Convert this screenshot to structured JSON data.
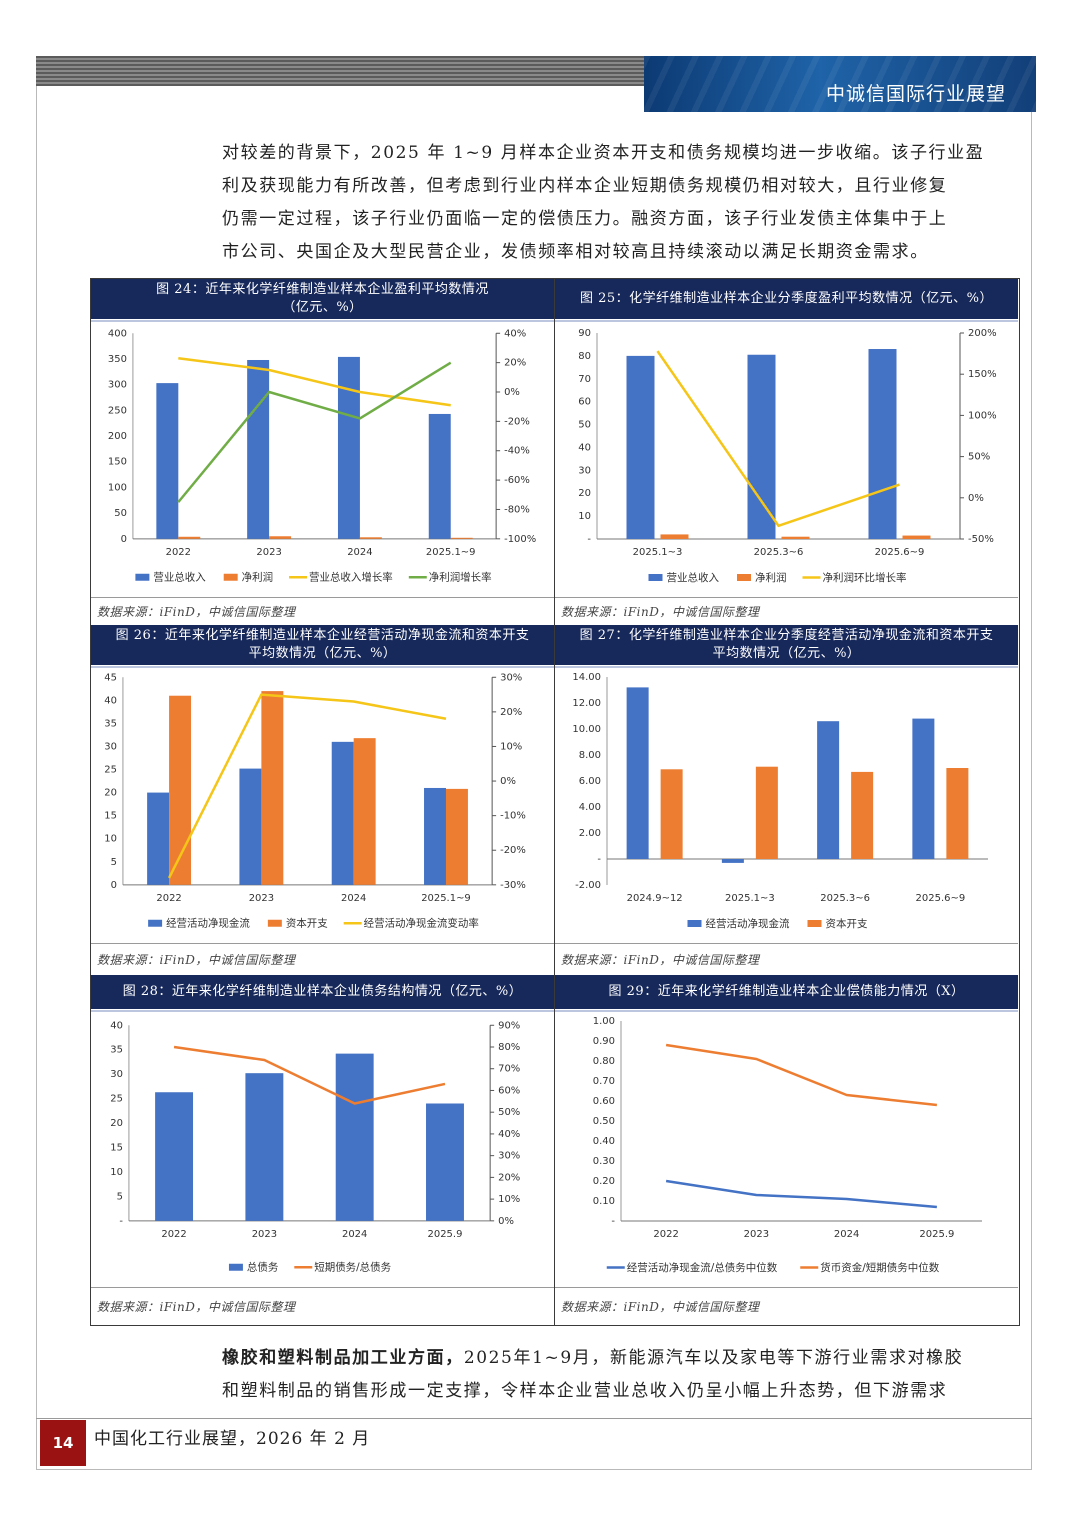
{
  "header": {
    "title": "中诚信国际行业展望"
  },
  "intro_lines": [
    "对较差的背景下，2025 年 1~9 月样本企业资本开支和债务规模均进一步收缩。该子行业盈",
    "利及获现能力有所改善，但考虑到行业内样本企业短期债务规模仍相对较大，且行业修复",
    "仍需一定过程，该子行业仍面临一定的偿债压力。融资方面，该子行业发债主体集中于上",
    "市公司、央国企及大型民营企业，发债频率相对较高且持续滚动以满足长期资金需求。"
  ],
  "outro": {
    "lead": "橡胶和塑料制品加工业方面，",
    "line1": "2025年1~9月，新能源汽车以及家电等下游行业需求对橡胶",
    "line2": "和塑料制品的销售形成一定支撑，令样本企业营业总收入仍呈小幅上升态势，但下游需求"
  },
  "footer": {
    "page_number": "14",
    "publication": "中国化工行业展望，2026 年 2 月"
  },
  "colors": {
    "blue": "#4472c4",
    "orange": "#ed7d31",
    "yellow": "#f5c518",
    "green": "#70ad47",
    "navy": "#17285b"
  },
  "chart_data": [
    {
      "id": "fig24",
      "type": "bar",
      "title": "图 24：近年来化学纤维制造业样本企业盈利平均数情况\n（亿元、%）",
      "source": "数据来源：iFinD，中诚信国际整理",
      "categories": [
        "2022",
        "2023",
        "2024",
        "2025.1~9"
      ],
      "left_axis": {
        "min": 0,
        "max": 400,
        "ticks": [
          "0",
          "50",
          "100",
          "150",
          "200",
          "250",
          "300",
          "350",
          "400"
        ]
      },
      "right_axis": {
        "min": -100,
        "max": 40,
        "ticks": [
          "-100%",
          "-80%",
          "-60%",
          "-40%",
          "-20%",
          "0%",
          "20%",
          "40%"
        ]
      },
      "series": [
        {
          "name": "营业总收入",
          "kind": "bar",
          "axis": "left",
          "color": "#4472c4",
          "values": [
            303,
            348,
            354,
            243
          ]
        },
        {
          "name": "净利润",
          "kind": "bar",
          "axis": "left",
          "color": "#ed7d31",
          "values": [
            4,
            5,
            3,
            2
          ]
        },
        {
          "name": "营业总收入增长率",
          "kind": "line",
          "axis": "right",
          "color": "#f5c518",
          "values": [
            23,
            15,
            0,
            -9
          ]
        },
        {
          "name": "净利润增长率",
          "kind": "line",
          "axis": "right",
          "color": "#70ad47",
          "values": [
            -75,
            0,
            -18,
            20
          ]
        }
      ]
    },
    {
      "id": "fig25",
      "type": "bar",
      "title": "图 25：化学纤维制造业样本企业分季度盈利平均数情况（亿元、%）",
      "source": "数据来源：iFinD，中诚信国际整理",
      "categories": [
        "2025.1~3",
        "2025.3~6",
        "2025.6~9"
      ],
      "left_axis": {
        "min": 0,
        "max": 90,
        "ticks": [
          "-",
          "10",
          "20",
          "30",
          "40",
          "50",
          "60",
          "70",
          "80",
          "90"
        ]
      },
      "right_axis": {
        "min": -50,
        "max": 200,
        "ticks": [
          "-50%",
          "0%",
          "50%",
          "100%",
          "150%",
          "200%"
        ]
      },
      "series": [
        {
          "name": "营业总收入",
          "kind": "bar",
          "axis": "left",
          "color": "#4472c4",
          "values": [
            80,
            80.5,
            83
          ]
        },
        {
          "name": "净利润",
          "kind": "bar",
          "axis": "left",
          "color": "#ed7d31",
          "values": [
            2,
            1,
            1.5
          ]
        },
        {
          "name": "净利润环比增长率",
          "kind": "line",
          "axis": "right",
          "color": "#f5c518",
          "values": [
            178,
            -34,
            16
          ]
        }
      ]
    },
    {
      "id": "fig26",
      "type": "bar",
      "title": "图 26：近年来化学纤维制造业样本企业经营活动净现金流和资本开支\n平均数情况（亿元、%）",
      "source": "数据来源：iFinD，中诚信国际整理",
      "categories": [
        "2022",
        "2023",
        "2024",
        "2025.1~9"
      ],
      "left_axis": {
        "min": 0,
        "max": 45,
        "ticks": [
          "0",
          "5",
          "10",
          "15",
          "20",
          "25",
          "30",
          "35",
          "40",
          "45"
        ]
      },
      "right_axis": {
        "min": -30,
        "max": 30,
        "ticks": [
          "-30%",
          "-20%",
          "-10%",
          "0%",
          "10%",
          "20%",
          "30%"
        ]
      },
      "series": [
        {
          "name": "经营活动净现金流",
          "kind": "bar",
          "axis": "left",
          "color": "#4472c4",
          "values": [
            20,
            25.2,
            31,
            21
          ]
        },
        {
          "name": "资本开支",
          "kind": "bar",
          "axis": "left",
          "color": "#ed7d31",
          "values": [
            41,
            42,
            31.8,
            20.8
          ]
        },
        {
          "name": "经营活动净现金流变动率",
          "kind": "line",
          "axis": "right",
          "color": "#f5c518",
          "values": [
            -28,
            25,
            23,
            18
          ]
        }
      ]
    },
    {
      "id": "fig27",
      "type": "bar",
      "title": "图 27：化学纤维制造业样本企业分季度经营活动净现金流和资本开支\n平均数情况（亿元、%）",
      "source": "数据来源：iFinD，中诚信国际整理",
      "categories": [
        "2024.9~12",
        "2025.1~3",
        "2025.3~6",
        "2025.6~9"
      ],
      "left_axis": {
        "min": -2,
        "max": 14,
        "ticks": [
          "-2.00",
          "-",
          "2.00",
          "4.00",
          "6.00",
          "8.00",
          "10.00",
          "12.00",
          "14.00"
        ]
      },
      "series": [
        {
          "name": "经营活动净现金流",
          "kind": "bar",
          "axis": "left",
          "color": "#4472c4",
          "values": [
            13.2,
            -0.3,
            10.6,
            10.8
          ]
        },
        {
          "name": "资本开支",
          "kind": "bar",
          "axis": "left",
          "color": "#ed7d31",
          "values": [
            6.9,
            7.1,
            6.7,
            7.0
          ]
        }
      ]
    },
    {
      "id": "fig28",
      "type": "bar",
      "title": "图 28：近年来化学纤维制造业样本企业债务结构情况（亿元、%）",
      "source": "数据来源：iFinD，中诚信国际整理",
      "categories": [
        "2022",
        "2023",
        "2024",
        "2025.9"
      ],
      "left_axis": {
        "min": 0,
        "max": 40,
        "ticks": [
          "-",
          "5",
          "10",
          "15",
          "20",
          "25",
          "30",
          "35",
          "40"
        ]
      },
      "right_axis": {
        "min": 0,
        "max": 90,
        "ticks": [
          "0%",
          "10%",
          "20%",
          "30%",
          "40%",
          "50%",
          "60%",
          "70%",
          "80%",
          "90%"
        ]
      },
      "series": [
        {
          "name": "总债务",
          "kind": "bar",
          "axis": "left",
          "color": "#4472c4",
          "values": [
            26.3,
            30.2,
            34.2,
            24
          ]
        },
        {
          "name": "短期债务/总债务",
          "kind": "line",
          "axis": "right",
          "color": "#ed7d31",
          "values": [
            80,
            74,
            54,
            63
          ]
        }
      ]
    },
    {
      "id": "fig29",
      "type": "line",
      "title": "图 29：近年来化学纤维制造业样本企业偿债能力情况（X）",
      "source": "数据来源：iFinD，中诚信国际整理",
      "categories": [
        "2022",
        "2023",
        "2024",
        "2025.9"
      ],
      "left_axis": {
        "min": 0,
        "max": 1,
        "ticks": [
          "-",
          "0.10",
          "0.20",
          "0.30",
          "0.40",
          "0.50",
          "0.60",
          "0.70",
          "0.80",
          "0.90",
          "1.00"
        ]
      },
      "series": [
        {
          "name": "经营活动净现金流/总债务中位数",
          "kind": "line",
          "axis": "left",
          "color": "#4472c4",
          "values": [
            0.2,
            0.13,
            0.11,
            0.07
          ]
        },
        {
          "name": "货币资金/短期债务中位数",
          "kind": "line",
          "axis": "left",
          "color": "#ed7d31",
          "values": [
            0.88,
            0.81,
            0.63,
            0.58
          ]
        }
      ]
    }
  ]
}
